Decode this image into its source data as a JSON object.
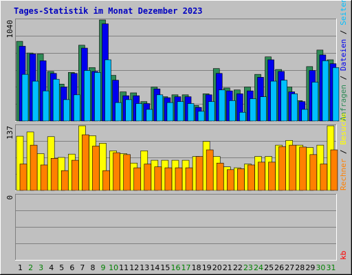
{
  "title": "Tages-Statistik im Monat Dezember 2023",
  "colors": {
    "anfragen": "#2e8b57",
    "dateien": "#0000ee",
    "seiten": "#00bfff",
    "besuche": "#ffff00",
    "rechner": "#ff8000",
    "kb": "#ff0000",
    "title": "#0000c0",
    "weekend": "#008000",
    "weekday": "#000000"
  },
  "chart_data": [
    {
      "type": "bar",
      "panel": "top",
      "ymax_label": "1040",
      "ylim": [
        0,
        1040
      ],
      "right_labels": [
        "Anfragen",
        "Dateien",
        "Seiten"
      ],
      "categories": [
        "1",
        "2",
        "3",
        "4",
        "5",
        "6",
        "7",
        "8",
        "9",
        "10",
        "11",
        "12",
        "13",
        "14",
        "15",
        "16",
        "17",
        "18",
        "19",
        "20",
        "21",
        "22",
        "23",
        "24",
        "25",
        "26",
        "27",
        "28",
        "29",
        "30",
        "31"
      ],
      "series": [
        {
          "name": "Anfragen",
          "values": [
            820,
            700,
            690,
            510,
            380,
            500,
            780,
            550,
            1040,
            470,
            300,
            290,
            200,
            350,
            250,
            270,
            270,
            160,
            280,
            540,
            340,
            320,
            350,
            480,
            660,
            530,
            350,
            210,
            560,
            730,
            630
          ]
        },
        {
          "name": "Dateien",
          "values": [
            770,
            690,
            620,
            490,
            350,
            490,
            750,
            510,
            1000,
            420,
            260,
            260,
            180,
            330,
            240,
            250,
            250,
            140,
            270,
            490,
            310,
            280,
            310,
            450,
            630,
            510,
            300,
            200,
            520,
            680,
            590
          ]
        },
        {
          "name": "Seiten",
          "values": [
            480,
            410,
            310,
            430,
            220,
            270,
            520,
            500,
            630,
            190,
            220,
            180,
            120,
            270,
            190,
            200,
            180,
            100,
            200,
            320,
            210,
            90,
            230,
            250,
            410,
            420,
            280,
            120,
            400,
            620,
            550
          ]
        }
      ]
    },
    {
      "type": "bar",
      "panel": "middle",
      "ymax_label": "137",
      "ylim": [
        0,
        137
      ],
      "right_labels": [
        "Rechner",
        "Besuche"
      ],
      "categories": [
        "1",
        "2",
        "3",
        "4",
        "5",
        "6",
        "7",
        "8",
        "9",
        "10",
        "11",
        "12",
        "13",
        "14",
        "15",
        "16",
        "17",
        "18",
        "19",
        "20",
        "21",
        "22",
        "23",
        "24",
        "25",
        "26",
        "27",
        "28",
        "29",
        "30",
        "31"
      ],
      "series": [
        {
          "name": "Besuche",
          "values": [
            115,
            124,
            78,
            114,
            70,
            77,
            137,
            116,
            100,
            84,
            78,
            58,
            84,
            64,
            64,
            64,
            64,
            72,
            104,
            72,
            50,
            48,
            56,
            72,
            72,
            96,
            106,
            96,
            91,
            96,
            137
          ]
        },
        {
          "name": "Rechner",
          "values": [
            56,
            96,
            54,
            68,
            42,
            64,
            118,
            94,
            42,
            80,
            76,
            48,
            56,
            50,
            48,
            48,
            48,
            72,
            86,
            58,
            44,
            46,
            54,
            60,
            60,
            93,
            96,
            92,
            76,
            56,
            86
          ]
        }
      ]
    },
    {
      "type": "bar",
      "panel": "bottom",
      "ymax_label": "0",
      "ylim": [
        0,
        1
      ],
      "right_labels": [
        "kb"
      ],
      "categories": [
        "1",
        "2",
        "3",
        "4",
        "5",
        "6",
        "7",
        "8",
        "9",
        "10",
        "11",
        "12",
        "13",
        "14",
        "15",
        "16",
        "17",
        "18",
        "19",
        "20",
        "21",
        "22",
        "23",
        "24",
        "25",
        "26",
        "27",
        "28",
        "29",
        "30",
        "31"
      ],
      "series": [
        {
          "name": "kb",
          "values": [
            0,
            0,
            0,
            0,
            0,
            0,
            0,
            0,
            0,
            0,
            0,
            0,
            0,
            0,
            0,
            0,
            0,
            0,
            0,
            0,
            0,
            0,
            0,
            0,
            0,
            0,
            0,
            0,
            0,
            0,
            0
          ]
        }
      ]
    }
  ],
  "x_ticks": [
    {
      "label": "1",
      "weekend": false
    },
    {
      "label": "2",
      "weekend": true
    },
    {
      "label": "3",
      "weekend": true
    },
    {
      "label": "4",
      "weekend": false
    },
    {
      "label": "5",
      "weekend": false
    },
    {
      "label": "6",
      "weekend": false
    },
    {
      "label": "7",
      "weekend": false
    },
    {
      "label": "8",
      "weekend": false
    },
    {
      "label": "9",
      "weekend": true
    },
    {
      "label": "10",
      "weekend": true
    },
    {
      "label": "11",
      "weekend": false
    },
    {
      "label": "12",
      "weekend": false
    },
    {
      "label": "13",
      "weekend": false
    },
    {
      "label": "14",
      "weekend": false
    },
    {
      "label": "15",
      "weekend": false
    },
    {
      "label": "16",
      "weekend": true
    },
    {
      "label": "17",
      "weekend": true
    },
    {
      "label": "18",
      "weekend": false
    },
    {
      "label": "19",
      "weekend": false
    },
    {
      "label": "20",
      "weekend": false
    },
    {
      "label": "21",
      "weekend": false
    },
    {
      "label": "22",
      "weekend": false
    },
    {
      "label": "23",
      "weekend": true
    },
    {
      "label": "24",
      "weekend": true
    },
    {
      "label": "25",
      "weekend": false
    },
    {
      "label": "26",
      "weekend": false
    },
    {
      "label": "27",
      "weekend": false
    },
    {
      "label": "28",
      "weekend": false
    },
    {
      "label": "29",
      "weekend": false
    },
    {
      "label": "30",
      "weekend": true
    },
    {
      "label": "31",
      "weekend": true
    }
  ]
}
